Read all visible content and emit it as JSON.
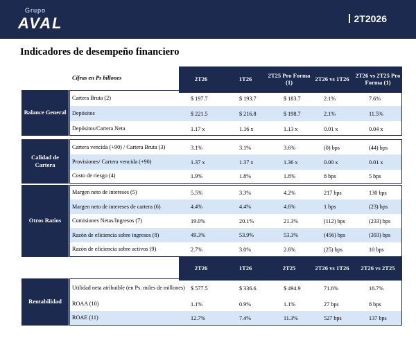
{
  "header": {
    "brand_small": "Grupo",
    "brand_big": "AVAL",
    "period": "2T2026"
  },
  "title": "Indicadores de desempeño financiero",
  "table1": {
    "caption": "Cifras en Ps billones",
    "columns": [
      "2T26",
      "1T26",
      "2T25 Pro Forma (1)",
      "2T26 vs 1T26",
      "2T26 vs 2T25 Pro Forma (1)"
    ]
  },
  "sections": [
    {
      "label": "Balance General",
      "rows": [
        {
          "label": "Cartera Bruta (2)",
          "values": [
            "$ 197.7",
            "$ 193.7",
            "$ 183.7",
            "2.1%",
            "7.6%"
          ]
        },
        {
          "label": "Depósitos",
          "values": [
            "$ 221.5",
            "$ 216.8",
            "$ 198.7",
            "2.1%",
            "11.5%"
          ]
        },
        {
          "label": "Depósitos/Cartera Neta",
          "values": [
            "1.17 x",
            "1.16 x",
            "1.13 x",
            "0.01 x",
            "0.04 x"
          ]
        }
      ]
    },
    {
      "label": "Calidad de Cartera",
      "rows": [
        {
          "label": "Cartera vencida (+90) / Cartera Bruta (3)",
          "values": [
            "3.1%",
            "3.1%",
            "3.6%",
            "(0) bps",
            "(44) bps"
          ]
        },
        {
          "label": "Provisiones/ Cartera vencida (+90)",
          "values": [
            "1.37 x",
            "1.37 x",
            "1.36 x",
            "0.00 x",
            "0.01 x"
          ]
        },
        {
          "label": "Costo de riesgo (4)",
          "values": [
            "1.9%",
            "1.8%",
            "1.8%",
            "8 bps",
            "5 bps"
          ]
        }
      ]
    },
    {
      "label": "Otros Ratios",
      "rows": [
        {
          "label": "Margen neto de intereses (5)",
          "values": [
            "5.5%",
            "3.3%",
            "4.2%",
            "217 bps",
            "130 bps"
          ]
        },
        {
          "label": "Margen neto de intereses de cartera (6)",
          "values": [
            "4.4%",
            "4.4%",
            "4.6%",
            "1 bps",
            "(23) bps"
          ]
        },
        {
          "label": "Comisiones Netas/Ingresos (7)",
          "values": [
            "19.0%",
            "20.1%",
            "21.3%",
            "(112) bps",
            "(233) bps"
          ]
        },
        {
          "label": "Razón de eficiencia sobre ingresos (8)",
          "values": [
            "49.3%",
            "53.9%",
            "53.3%",
            "(456) bps",
            "(393) bps"
          ]
        },
        {
          "label": "Razón de eficiencia sobre activos (9)",
          "values": [
            "2.7%",
            "3.0%",
            "2.6%",
            "(25) bps",
            "10 bps"
          ]
        }
      ]
    }
  ],
  "table2": {
    "columns": [
      "2T26",
      "1T26",
      "2T25",
      "2T26 vs 1T26",
      "2T26 vs 2T25"
    ],
    "section": {
      "label": "Rentabilidad",
      "rows": [
        {
          "label": "Utilidad neta atribuible (en Ps. miles de millones)",
          "values": [
            "$ 577.5",
            "$ 336.6",
            "$ 494.9",
            "71.6%",
            "16.7%"
          ]
        },
        {
          "label": "ROAA (10)",
          "values": [
            "1.1%",
            "0.9%",
            "1.1%",
            "27 bps",
            "8 bps"
          ]
        },
        {
          "label": "ROAE (11)",
          "values": [
            "12.7%",
            "7.4%",
            "11.3%",
            "527 bps",
            "137 bps"
          ]
        }
      ]
    }
  },
  "colors": {
    "navy": "#1b2a4e",
    "stripe": "#d7e6f7"
  }
}
